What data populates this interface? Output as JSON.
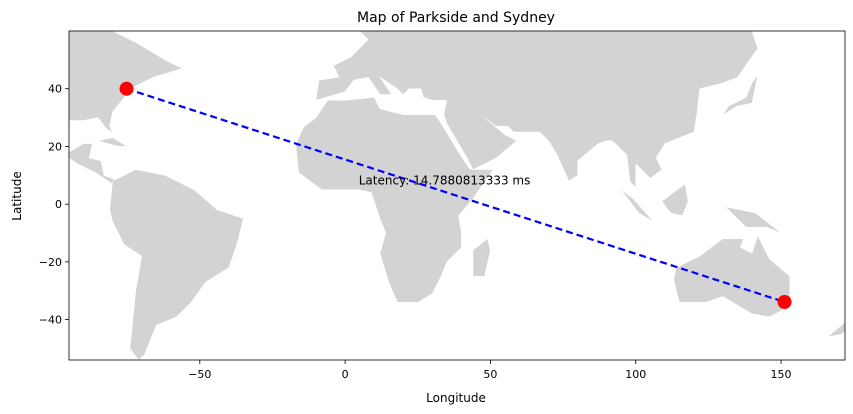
{
  "chart_data": {
    "type": "map-scatter",
    "title": "Map of Parkside and Sydney",
    "xlabel": "Longitude",
    "ylabel": "Latitude",
    "xlim": [
      -95,
      172
    ],
    "ylim": [
      -54,
      60
    ],
    "xticks": [
      -50,
      0,
      50,
      100,
      150
    ],
    "yticks": [
      -40,
      -20,
      0,
      20,
      40
    ],
    "grid": false,
    "land_color": "#d3d3d3",
    "points": [
      {
        "lon": -75.2,
        "lat": 40.0,
        "color": "#ff0000"
      },
      {
        "lon": 151.2,
        "lat": -33.9,
        "color": "#ff0000"
      }
    ],
    "line": {
      "color": "#0000ff",
      "style": "dashed"
    },
    "annotation": {
      "text": "Latency: 14.7880813333 ms",
      "lon": 4.7,
      "lat": 4.0
    }
  }
}
